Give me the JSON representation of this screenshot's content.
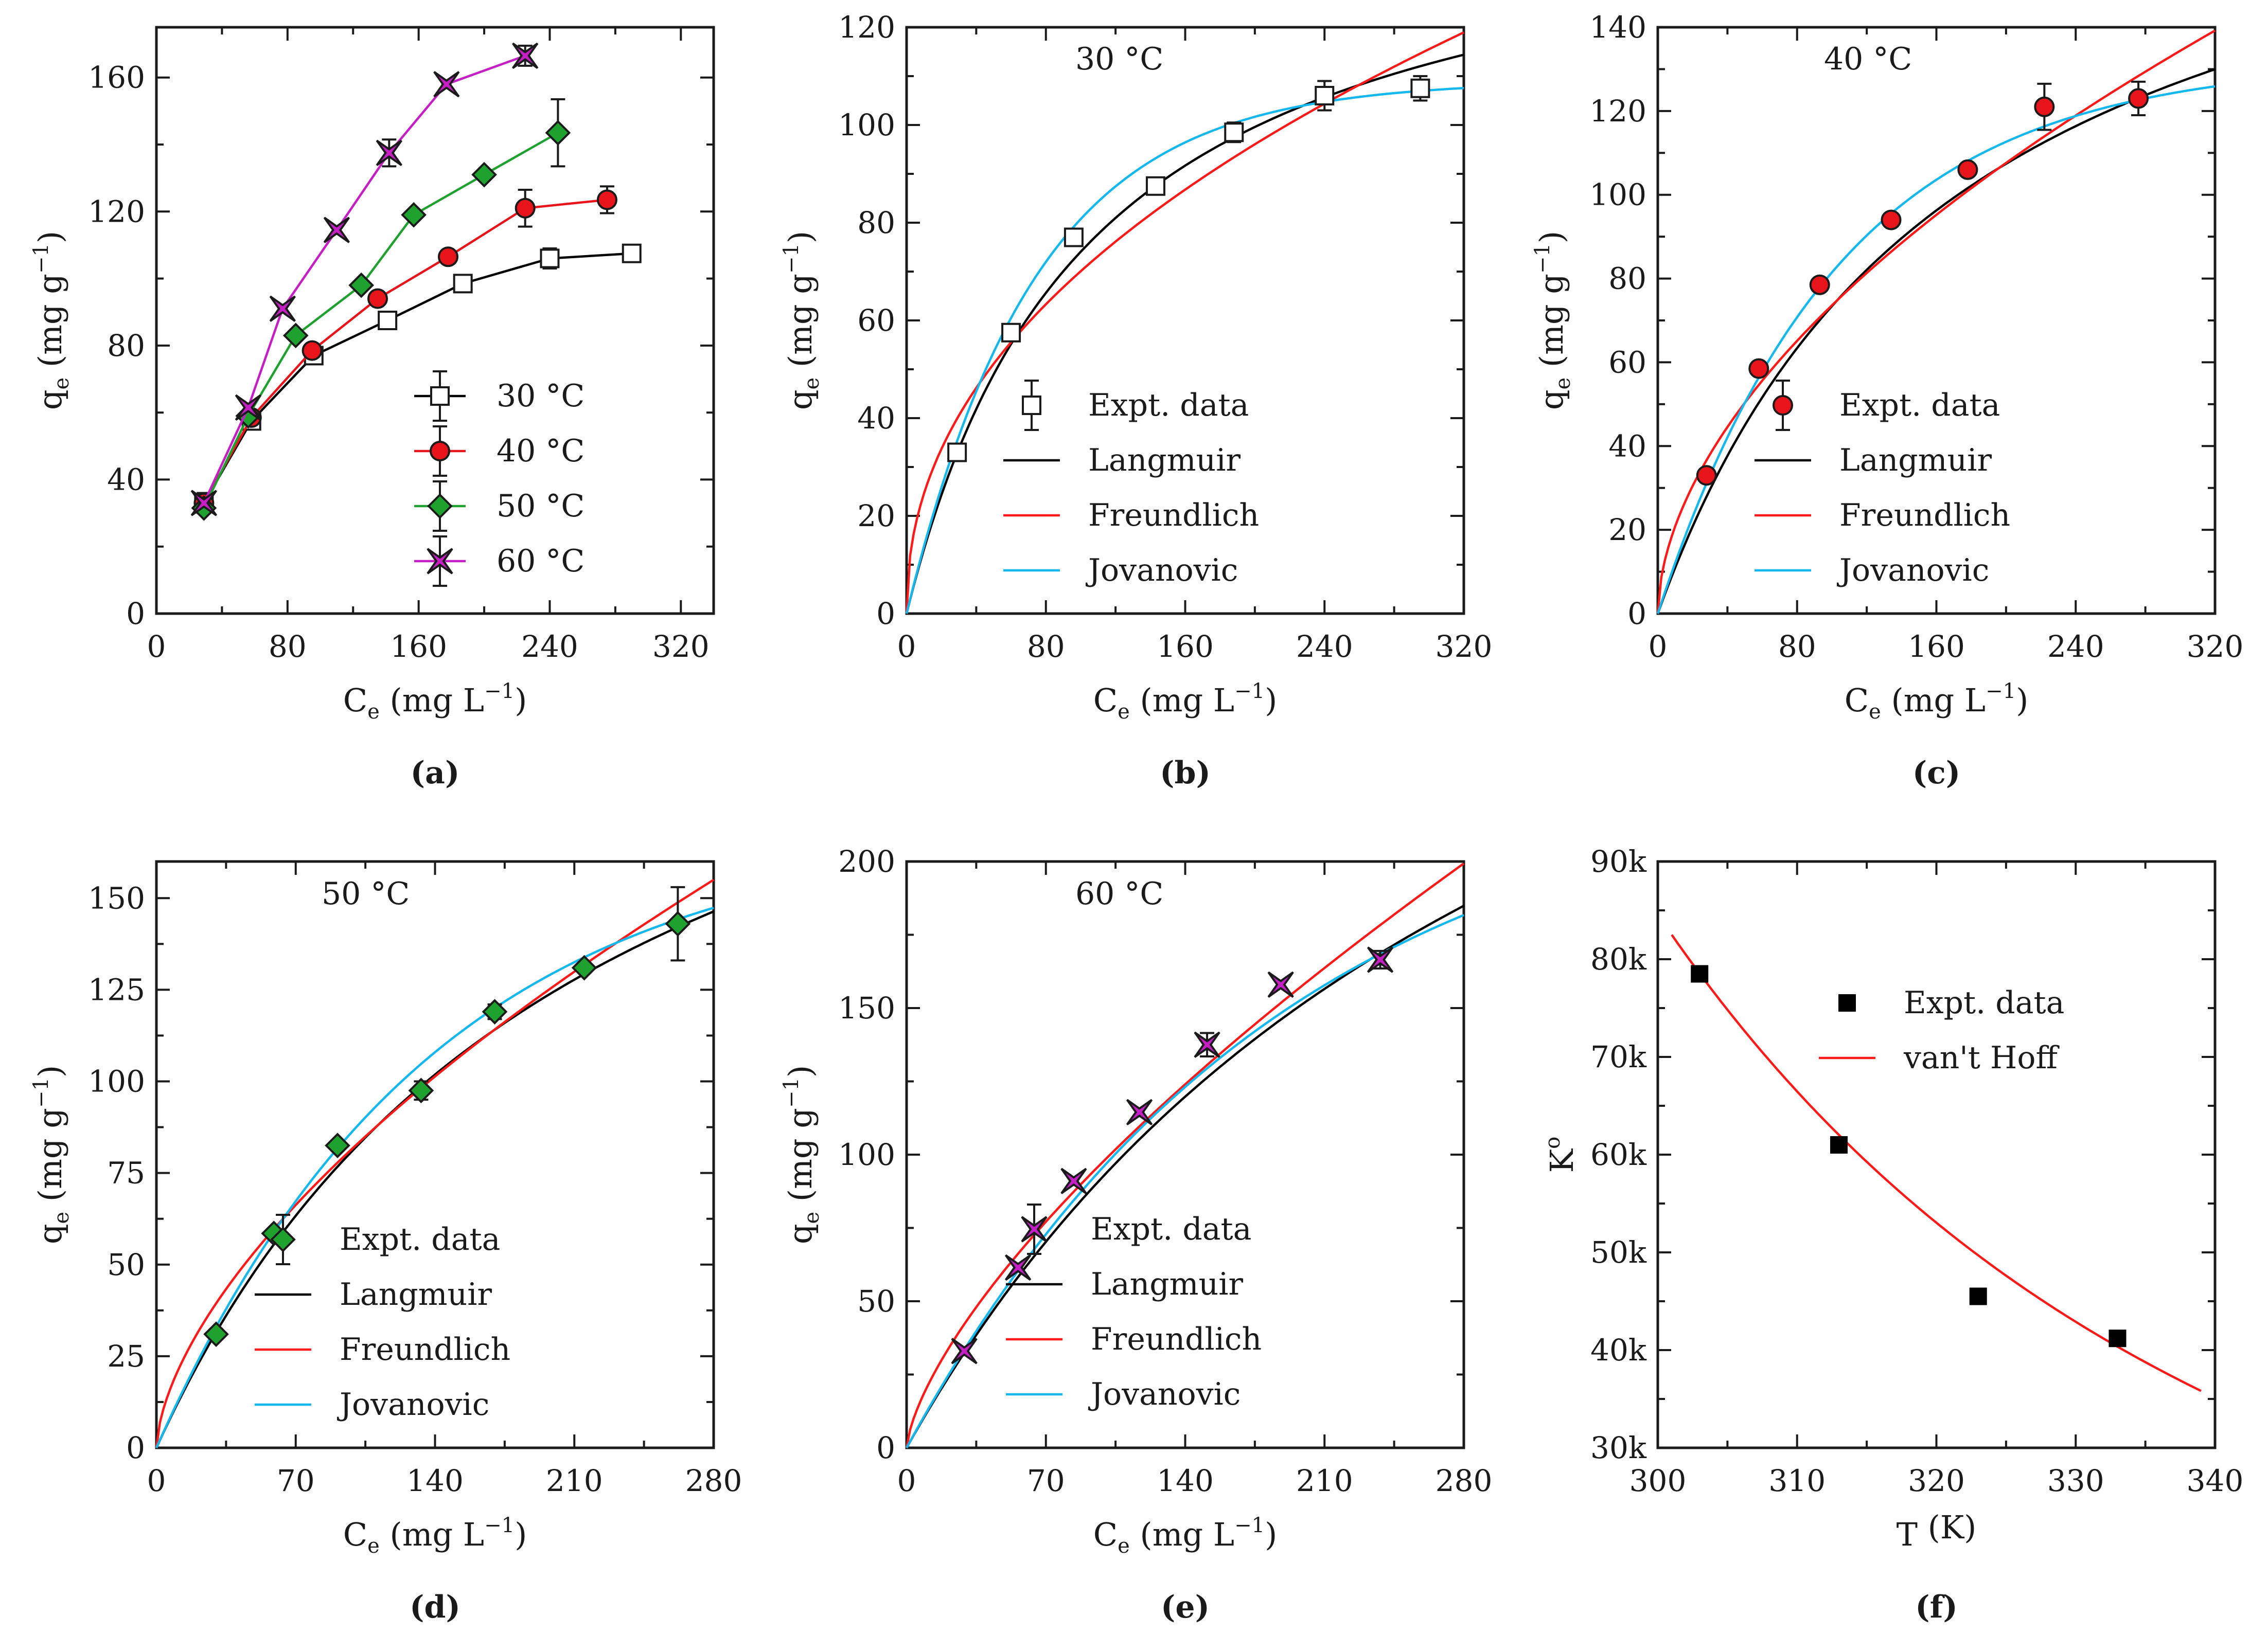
{
  "colors": {
    "axis": "#1a1a1a",
    "langmuir": "#000000",
    "freundlich": "#ff1a1a",
    "jovanovic": "#15b8ee",
    "c30": "#ffffff",
    "c40": "#e8141b",
    "c50": "#1fa12f",
    "c60": "#c41ec4"
  },
  "chart_data": [
    {
      "id": "a",
      "type": "line",
      "panel_label": "(a)",
      "xlabel": {
        "main": "C",
        "sub": "e",
        "unit": " (mg L",
        "sup": "−1",
        "close": ")"
      },
      "ylabel": {
        "main": "q",
        "sub": "e",
        "unit": " (mg g",
        "sup": "−1",
        "close": ")"
      },
      "xlim": [
        0,
        340
      ],
      "ylim": [
        0,
        175
      ],
      "xticks": [
        0,
        80,
        160,
        240,
        320
      ],
      "yticks": [
        0,
        40,
        80,
        120,
        160
      ],
      "xticklabels": [
        "0",
        "80",
        "160",
        "240",
        "320"
      ],
      "yticklabels": [
        "0",
        "40",
        "80",
        "120",
        "160"
      ],
      "legend": {
        "position": "bottom-right",
        "entries": [
          "30 °C",
          "40 °C",
          "50 °C",
          "60 °C"
        ]
      },
      "series": [
        {
          "name": "30 °C",
          "marker": "square",
          "color": "#ffffff",
          "line": "#000000",
          "x": [
            29,
            58,
            96,
            141,
            187,
            240,
            290
          ],
          "y": [
            33,
            57.5,
            77,
            87.5,
            98.5,
            106,
            107.5
          ],
          "err": [
            3,
            0,
            0,
            0,
            2,
            3,
            2.5
          ]
        },
        {
          "name": "40 °C",
          "marker": "circle",
          "color": "#e8141b",
          "line": "#e8141b",
          "x": [
            29,
            58,
            95,
            135,
            178,
            225,
            275
          ],
          "y": [
            33,
            58.5,
            78.5,
            94,
            106.5,
            121,
            123.5
          ],
          "err": [
            0,
            0,
            0,
            0,
            0,
            5.5,
            4
          ]
        },
        {
          "name": "50 °C",
          "marker": "diamond",
          "color": "#1fa12f",
          "line": "#1fa12f",
          "x": [
            29,
            56,
            85,
            125,
            157,
            200,
            245
          ],
          "y": [
            31.5,
            59,
            83,
            98,
            119,
            131,
            143.5
          ],
          "err": [
            0,
            0,
            0,
            0,
            0,
            0,
            10
          ]
        },
        {
          "name": "60 °C",
          "marker": "star",
          "color": "#c41ec4",
          "line": "#c41ec4",
          "x": [
            29,
            56,
            77,
            110,
            142,
            177,
            225
          ],
          "y": [
            33,
            61.5,
            91,
            114.5,
            137.5,
            158,
            166.5
          ],
          "err": [
            0,
            0,
            0,
            0,
            4,
            0,
            3
          ]
        }
      ]
    },
    {
      "id": "b",
      "type": "line",
      "panel_label": "(b)",
      "inset": "30 °C",
      "xlabel": {
        "main": "C",
        "sub": "e",
        "unit": " (mg L",
        "sup": "−1",
        "close": ")"
      },
      "ylabel": {
        "main": "q",
        "sub": "e",
        "unit": " (mg g",
        "sup": "−1",
        "close": ")"
      },
      "xlim": [
        0,
        320
      ],
      "ylim": [
        0,
        120
      ],
      "xticks": [
        0,
        80,
        160,
        240,
        320
      ],
      "yticks": [
        0,
        20,
        40,
        60,
        80,
        100,
        120
      ],
      "xticklabels": [
        "0",
        "80",
        "160",
        "240",
        "320"
      ],
      "yticklabels": [
        "0",
        "20",
        "40",
        "60",
        "80",
        "100",
        "120"
      ],
      "legend": {
        "position": "lower-right",
        "entries": [
          "Expt. data",
          "Langmuir",
          "Freundlich",
          "Jovanovic"
        ]
      },
      "points": {
        "marker": "square",
        "color": "#ffffff",
        "x": [
          29,
          60,
          96,
          143,
          188,
          240,
          295
        ],
        "y": [
          33,
          57.5,
          77,
          87.5,
          98.5,
          106,
          107.5
        ],
        "err": [
          0,
          0,
          0,
          0,
          2,
          3,
          2.5
        ]
      },
      "models": [
        {
          "name": "Langmuir",
          "kind": "langmuir",
          "p": [
            152,
            0.0095
          ]
        },
        {
          "name": "Freundlich",
          "kind": "freundlich",
          "p": [
            8.62,
            0.455
          ]
        },
        {
          "name": "Jovanovic",
          "kind": "jovanovic",
          "p": [
            109,
            0.0135
          ]
        }
      ]
    },
    {
      "id": "c",
      "type": "line",
      "panel_label": "(c)",
      "inset": "40 °C",
      "xlabel": {
        "main": "C",
        "sub": "e",
        "unit": " (mg L",
        "sup": "−1",
        "close": ")"
      },
      "ylabel": {
        "main": "q",
        "sub": "e",
        "unit": " (mg g",
        "sup": "−1",
        "close": ")"
      },
      "xlim": [
        0,
        320
      ],
      "ylim": [
        0,
        140
      ],
      "xticks": [
        0,
        80,
        160,
        240,
        320
      ],
      "yticks": [
        0,
        20,
        40,
        60,
        80,
        100,
        120,
        140
      ],
      "xticklabels": [
        "0",
        "80",
        "160",
        "240",
        "320"
      ],
      "yticklabels": [
        "0",
        "20",
        "40",
        "60",
        "80",
        "100",
        "120",
        "140"
      ],
      "legend": {
        "position": "lower-right",
        "entries": [
          "Expt. data",
          "Langmuir",
          "Freundlich",
          "Jovanovic"
        ]
      },
      "points": {
        "marker": "circle",
        "color": "#e8141b",
        "x": [
          28,
          58,
          93,
          134,
          178,
          222,
          276
        ],
        "y": [
          33,
          58.5,
          78.5,
          94,
          106,
          121,
          123
        ],
        "err": [
          0,
          0,
          0,
          0,
          0,
          5.5,
          4
        ]
      },
      "models": [
        {
          "name": "Langmuir",
          "kind": "langmuir",
          "p": [
            200,
            0.0058
          ]
        },
        {
          "name": "Freundlich",
          "kind": "freundlich",
          "p": [
            5.9,
            0.548
          ]
        },
        {
          "name": "Jovanovic",
          "kind": "jovanovic",
          "p": [
            132,
            0.0096
          ]
        }
      ]
    },
    {
      "id": "d",
      "type": "line",
      "panel_label": "(d)",
      "inset": "50 °C",
      "xlabel": {
        "main": "C",
        "sub": "e",
        "unit": " (mg L",
        "sup": "−1",
        "close": ")"
      },
      "ylabel": {
        "main": "q",
        "sub": "e",
        "unit": " (mg g",
        "sup": "−1",
        "close": ")"
      },
      "xlim": [
        0,
        280
      ],
      "ylim": [
        0,
        160
      ],
      "xticks": [
        0,
        70,
        140,
        210,
        280
      ],
      "yticks": [
        0,
        25,
        50,
        75,
        100,
        125,
        150
      ],
      "xticklabels": [
        "0",
        "70",
        "140",
        "210",
        "280"
      ],
      "yticklabels": [
        "0",
        "25",
        "50",
        "75",
        "100",
        "125",
        "150"
      ],
      "legend": {
        "position": "lower-right",
        "entries": [
          "Expt. data",
          "Langmuir",
          "Freundlich",
          "Jovanovic"
        ]
      },
      "points": {
        "marker": "diamond",
        "color": "#1fa12f",
        "x": [
          30,
          59,
          91,
          133,
          170,
          215,
          262
        ],
        "y": [
          31,
          58.5,
          82.5,
          97.5,
          119,
          131,
          143
        ],
        "err": [
          0,
          0,
          0,
          2.5,
          2,
          0,
          10
        ]
      },
      "models": [
        {
          "name": "Langmuir",
          "kind": "langmuir",
          "p": [
            260,
            0.0046
          ]
        },
        {
          "name": "Freundlich",
          "kind": "freundlich",
          "p": [
            4.9,
            0.613
          ]
        },
        {
          "name": "Jovanovic",
          "kind": "jovanovic",
          "p": [
            170,
            0.0072
          ]
        }
      ]
    },
    {
      "id": "e",
      "type": "line",
      "panel_label": "(e)",
      "inset": "60 °C",
      "xlabel": {
        "main": "C",
        "sub": "e",
        "unit": " (mg L",
        "sup": "−1",
        "close": ")"
      },
      "ylabel": {
        "main": "q",
        "sub": "e",
        "unit": " (mg g",
        "sup": "−1",
        "close": ")"
      },
      "xlim": [
        0,
        280
      ],
      "ylim": [
        0,
        200
      ],
      "xticks": [
        0,
        70,
        140,
        210,
        280
      ],
      "yticks": [
        0,
        50,
        100,
        150,
        200
      ],
      "xticklabels": [
        "0",
        "70",
        "140",
        "210",
        "280"
      ],
      "yticklabels": [
        "0",
        "50",
        "100",
        "150",
        "200"
      ],
      "legend": {
        "position": "lower-right",
        "entries": [
          "Expt. data",
          "Langmuir",
          "Freundlich",
          "Jovanovic"
        ]
      },
      "points": {
        "marker": "star",
        "color": "#c41ec4",
        "x": [
          29,
          56,
          84,
          117,
          151,
          188,
          238
        ],
        "y": [
          33,
          61.5,
          91,
          114.5,
          137.5,
          158,
          166.5
        ],
        "err": [
          0,
          0,
          0,
          0,
          4,
          0,
          3
        ]
      },
      "models": [
        {
          "name": "Langmuir",
          "kind": "langmuir",
          "p": [
            405,
            0.003
          ]
        },
        {
          "name": "Freundlich",
          "kind": "freundlich",
          "p": [
            4.2,
            0.685
          ]
        },
        {
          "name": "Jovanovic",
          "kind": "jovanovic",
          "p": [
            235,
            0.0053
          ]
        }
      ]
    },
    {
      "id": "f",
      "type": "scatter",
      "panel_label": "(f)",
      "xlabel": {
        "main": "T",
        "sub": "",
        "unit": " (K)",
        "sup": "",
        "close": ""
      },
      "ylabel": {
        "main": "K",
        "sub": "",
        "unit": "",
        "sup": "o",
        "close": ""
      },
      "xlim": [
        300,
        340
      ],
      "ylim": [
        30000,
        90000
      ],
      "xticks": [
        300,
        310,
        320,
        330,
        340
      ],
      "yticks": [
        30000,
        40000,
        50000,
        60000,
        70000,
        80000,
        90000
      ],
      "xticklabels": [
        "300",
        "310",
        "320",
        "330",
        "340"
      ],
      "yticklabels": [
        "30k",
        "40k",
        "50k",
        "60k",
        "70k",
        "80k",
        "90k"
      ],
      "legend": {
        "position": "upper-right",
        "entries": [
          "Expt. data",
          "van't Hoff"
        ]
      },
      "points": {
        "marker": "filled-square",
        "color": "#000000",
        "x": [
          303,
          313,
          323,
          333
        ],
        "y": [
          78500,
          61000,
          45500,
          41200
        ]
      },
      "models": [
        {
          "name": "van't Hoff",
          "kind": "vanthoff",
          "p": [
            82500,
            301,
            -2240
          ],
          "range": [
            301,
            339
          ]
        }
      ]
    }
  ]
}
